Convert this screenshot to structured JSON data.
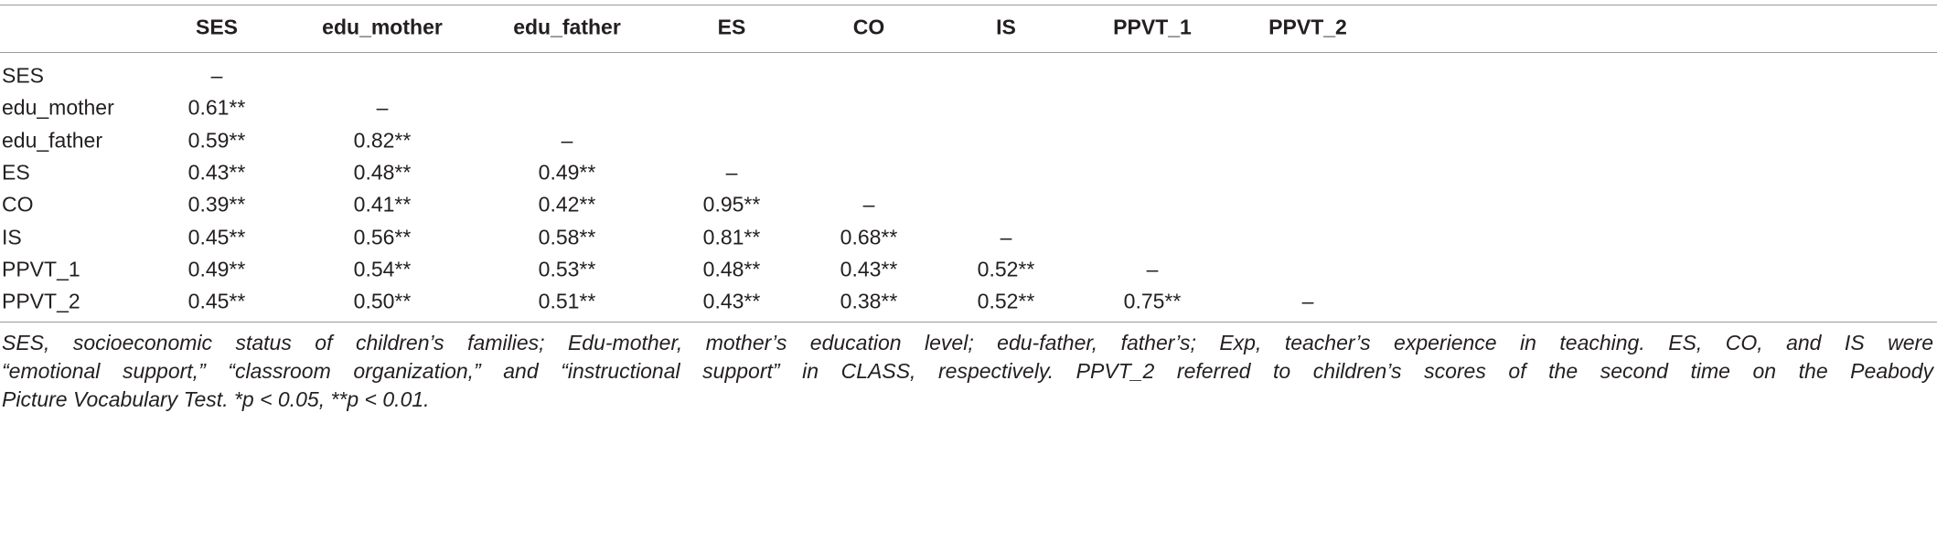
{
  "table": {
    "columns": [
      "SES",
      "edu_mother",
      "edu_father",
      "ES",
      "CO",
      "IS",
      "PPVT_1",
      "PPVT_2"
    ],
    "rows": [
      {
        "label": "SES",
        "cells": [
          "–"
        ]
      },
      {
        "label": "edu_mother",
        "cells": [
          "0.61**",
          "–"
        ]
      },
      {
        "label": "edu_father",
        "cells": [
          "0.59**",
          "0.82**",
          "–"
        ]
      },
      {
        "label": "ES",
        "cells": [
          "0.43**",
          "0.48**",
          "0.49**",
          "–"
        ]
      },
      {
        "label": "CO",
        "cells": [
          "0.39**",
          "0.41**",
          "0.42**",
          "0.95**",
          "–"
        ]
      },
      {
        "label": "IS",
        "cells": [
          "0.45**",
          "0.56**",
          "0.58**",
          "0.81**",
          "0.68**",
          "–"
        ]
      },
      {
        "label": "PPVT_1",
        "cells": [
          "0.49**",
          "0.54**",
          "0.53**",
          "0.48**",
          "0.43**",
          "0.52**",
          "–"
        ]
      },
      {
        "label": "PPVT_2",
        "cells": [
          "0.45**",
          "0.50**",
          "0.51**",
          "0.43**",
          "0.38**",
          "0.52**",
          "0.75**",
          "–"
        ]
      }
    ],
    "footnote": [
      "SES, socioeconomic status of children’s families; Edu-mother, mother’s education level; edu-father, father’s; Exp, teacher’s experience in teaching. ES, CO, and IS were",
      "“emotional support,” “classroom organization,” and “instructional support” in CLASS, respectively. PPVT_2 referred to children’s scores of the second time on the Peabody",
      "Picture Vocabulary Test. *p < 0.05, **p < 0.01."
    ]
  }
}
